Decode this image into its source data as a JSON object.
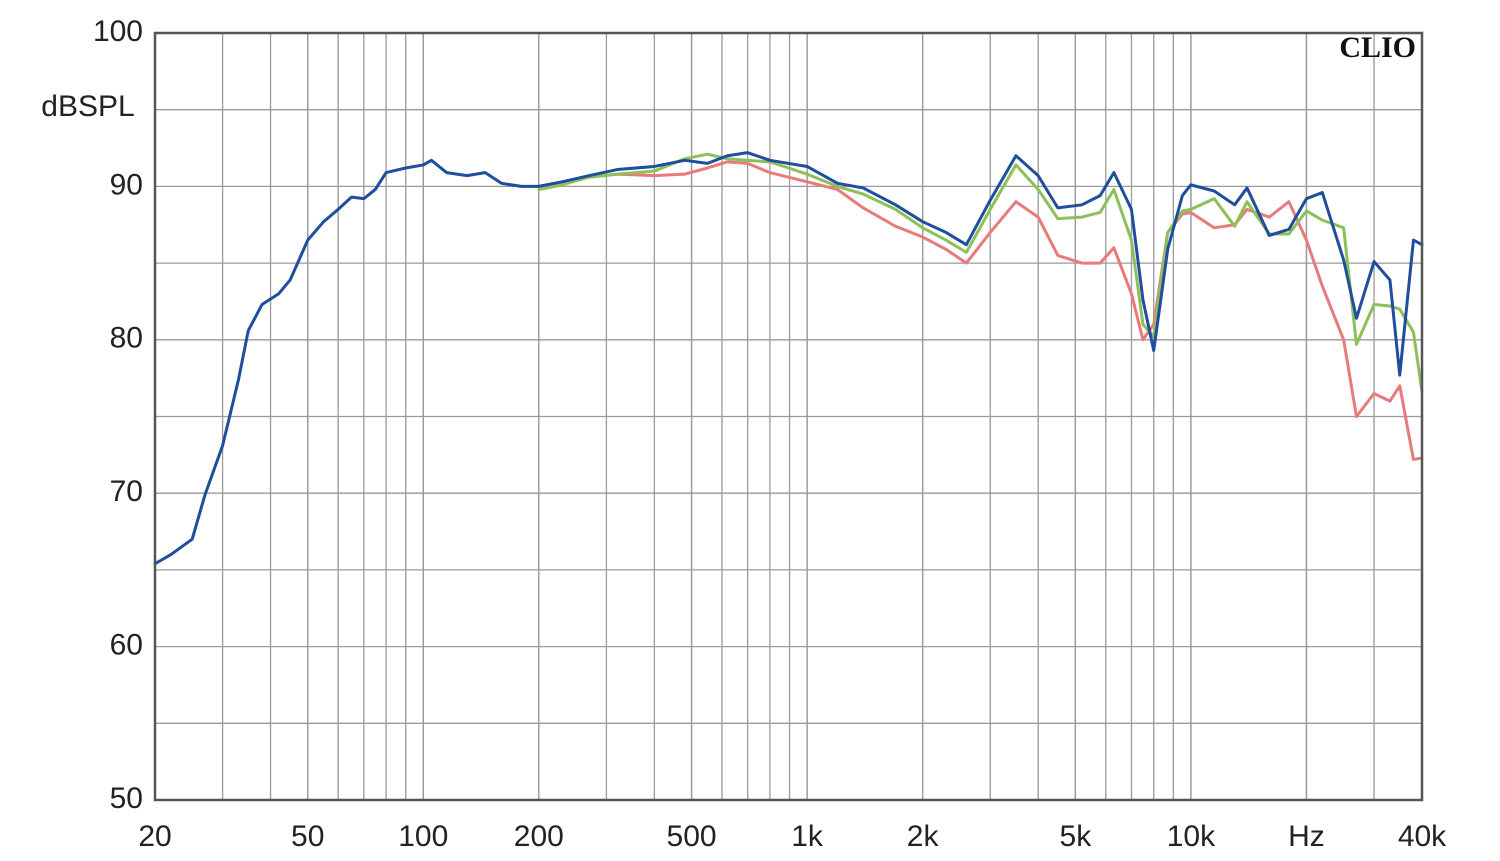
{
  "chart_data": {
    "type": "line",
    "y_label": "dBSPL",
    "watermark": "CLIO",
    "xscale": "log",
    "grid": true,
    "xlim": [
      20,
      40000
    ],
    "ylim": [
      50,
      100
    ],
    "yticks": [
      50,
      60,
      70,
      80,
      90,
      100
    ],
    "xticks": [
      20,
      50,
      100,
      200,
      500,
      {
        "value": 1000,
        "label": "1k"
      },
      {
        "value": 2000,
        "label": "2k"
      },
      {
        "value": 5000,
        "label": "5k"
      },
      {
        "value": 10000,
        "label": "10k"
      },
      {
        "value": 20000,
        "label": "Hz"
      },
      {
        "value": 40000,
        "label": "40k"
      }
    ],
    "x": [
      20,
      22,
      25,
      27,
      30,
      33,
      35,
      38,
      42,
      45,
      50,
      55,
      60,
      65,
      70,
      75,
      80,
      90,
      100,
      105,
      115,
      130,
      145,
      160,
      180,
      200,
      230,
      270,
      320,
      400,
      480,
      550,
      620,
      700,
      800,
      1000,
      1200,
      1400,
      1700,
      2000,
      2300,
      2600,
      3000,
      3500,
      4000,
      4500,
      5200,
      5800,
      6300,
      7000,
      7500,
      8000,
      8700,
      9500,
      10000,
      11500,
      13000,
      14000,
      16000,
      18000,
      20000,
      22000,
      25000,
      27000,
      30000,
      33000,
      35000,
      38000,
      40000
    ],
    "series": [
      {
        "color": "#e87a7a",
        "values": [
          null,
          null,
          null,
          null,
          null,
          null,
          null,
          null,
          null,
          null,
          null,
          null,
          null,
          null,
          null,
          null,
          null,
          null,
          null,
          null,
          null,
          null,
          null,
          null,
          null,
          90.0,
          90.3,
          90.6,
          90.8,
          90.7,
          90.8,
          91.2,
          91.6,
          91.5,
          90.9,
          90.3,
          89.8,
          88.6,
          87.4,
          86.7,
          85.9,
          85.0,
          87.0,
          89.0,
          88.0,
          85.5,
          85.0,
          85.0,
          86.0,
          83.0,
          80.0,
          81.0,
          87.0,
          88.2,
          88.3,
          87.3,
          87.5,
          88.5,
          88.0,
          89.0,
          86.5,
          83.5,
          80.0,
          75.0,
          76.5,
          76.0,
          77.0,
          72.2,
          72.3
        ]
      },
      {
        "color": "#8cc05a",
        "values": [
          null,
          null,
          null,
          null,
          null,
          null,
          null,
          null,
          null,
          null,
          null,
          null,
          null,
          null,
          null,
          null,
          null,
          null,
          null,
          null,
          null,
          null,
          null,
          null,
          null,
          89.8,
          90.1,
          90.6,
          90.8,
          91.0,
          91.8,
          92.1,
          91.8,
          91.7,
          91.6,
          90.8,
          90.0,
          89.5,
          88.5,
          87.3,
          86.5,
          85.7,
          88.5,
          91.4,
          89.8,
          87.9,
          88.0,
          88.3,
          89.8,
          86.5,
          81.0,
          80.2,
          87.0,
          88.4,
          88.5,
          89.2,
          87.4,
          89.0,
          86.9,
          86.9,
          88.4,
          87.8,
          87.3,
          79.7,
          82.3,
          82.2,
          82.0,
          80.5,
          76.6
        ]
      },
      {
        "color": "#1f4e9c",
        "values": [
          65.4,
          66.0,
          67.0,
          69.9,
          73.1,
          77.4,
          80.6,
          82.3,
          83.0,
          83.9,
          86.5,
          87.7,
          88.5,
          89.3,
          89.2,
          89.8,
          90.9,
          91.2,
          91.4,
          91.7,
          90.9,
          90.7,
          90.9,
          90.2,
          90.0,
          90.0,
          90.3,
          90.7,
          91.1,
          91.3,
          91.7,
          91.5,
          92.0,
          92.2,
          91.7,
          91.3,
          90.2,
          89.9,
          88.8,
          87.7,
          87.0,
          86.2,
          89.1,
          92.0,
          90.7,
          88.6,
          88.8,
          89.4,
          90.9,
          88.5,
          82.6,
          79.3,
          85.9,
          89.4,
          90.1,
          89.7,
          88.8,
          89.9,
          86.8,
          87.2,
          89.2,
          89.6,
          85.2,
          81.4,
          85.1,
          83.9,
          77.7,
          86.5,
          86.2
        ]
      }
    ]
  }
}
